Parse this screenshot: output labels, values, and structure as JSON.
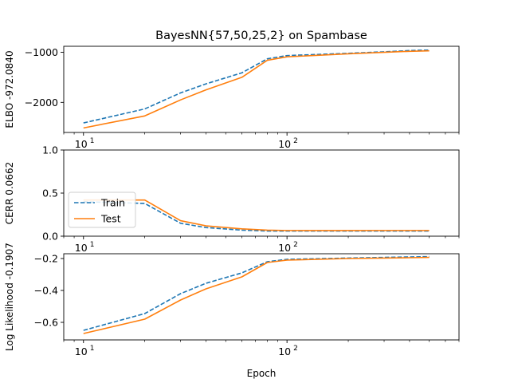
{
  "chart_data": {
    "type": "line",
    "title": "BayesNN{57,50,25,2} on Spambase",
    "xlabel": "Epoch",
    "xscale": "log",
    "xlim": [
      8,
      700
    ],
    "x": [
      10,
      20,
      30,
      40,
      60,
      80,
      100,
      200,
      300,
      400,
      500
    ],
    "legend": {
      "entries": [
        "Train",
        "Test"
      ],
      "placement": "center-left (middle panel)"
    },
    "colors": {
      "Train": "#1f77b4",
      "Test": "#ff7f0e"
    },
    "linestyles": {
      "Train": "dashed",
      "Test": "solid"
    },
    "panels": [
      {
        "ylabel": "ELBO -972.0840",
        "ylim": [
          -2600,
          -880
        ],
        "yticks": [
          -2000,
          -1000
        ],
        "ytick_labels": [
          "−2000",
          "−1000"
        ],
        "xticks": [
          10,
          100
        ],
        "series": [
          {
            "name": "Train",
            "values": [
              -2410,
              -2130,
              -1810,
              -1630,
              -1410,
              -1130,
              -1065,
              -1020,
              -990,
              -965,
              -955
            ]
          },
          {
            "name": "Test",
            "values": [
              -2510,
              -2270,
              -1950,
              -1750,
              -1500,
              -1160,
              -1090,
              -1030,
              -1000,
              -980,
              -970
            ]
          }
        ]
      },
      {
        "ylabel": "CERR 0.0662",
        "ylim": [
          0,
          1
        ],
        "yticks": [
          0,
          0.5,
          1
        ],
        "ytick_labels": [
          "0.0",
          "0.5",
          "1.0"
        ],
        "xticks": [
          10,
          100
        ],
        "series": [
          {
            "name": "Train",
            "values": [
              0.4,
              0.38,
              0.15,
              0.1,
              0.07,
              0.06,
              0.06,
              0.06,
              0.06,
              0.06,
              0.06
            ]
          },
          {
            "name": "Test",
            "values": [
              0.42,
              0.42,
              0.18,
              0.12,
              0.085,
              0.07,
              0.066,
              0.065,
              0.066,
              0.066,
              0.066
            ]
          }
        ]
      },
      {
        "ylabel": "Log Likelihood -0.1907",
        "ylim": [
          -0.71,
          -0.17
        ],
        "yticks": [
          -0.6,
          -0.4,
          -0.2
        ],
        "ytick_labels": [
          "−0.6",
          "−0.4",
          "−0.2"
        ],
        "xticks": [
          10,
          100
        ],
        "series": [
          {
            "name": "Train",
            "values": [
              -0.65,
              -0.545,
              -0.42,
              -0.355,
              -0.29,
              -0.22,
              -0.205,
              -0.197,
              -0.193,
              -0.19,
              -0.188
            ]
          },
          {
            "name": "Test",
            "values": [
              -0.67,
              -0.58,
              -0.46,
              -0.39,
              -0.315,
              -0.225,
              -0.21,
              -0.2,
              -0.197,
              -0.195,
              -0.193
            ]
          }
        ]
      }
    ]
  }
}
